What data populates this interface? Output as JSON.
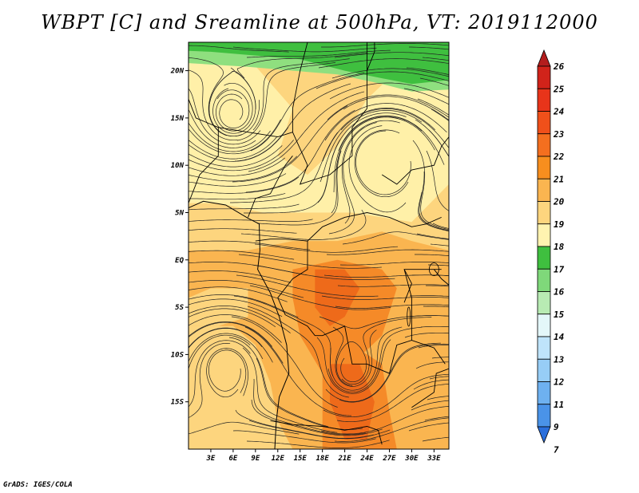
{
  "title": "WBPT [C] and Sreamline at 500hPa, VT: 2019112000",
  "credit": "GrADS: IGES/COLA",
  "map": {
    "lon_min": 0,
    "lon_max": 35,
    "lat_min": -20,
    "lat_max": 23,
    "lat_ticks": [
      {
        "value": 20,
        "label": "20N"
      },
      {
        "value": 15,
        "label": "15N"
      },
      {
        "value": 10,
        "label": "10N"
      },
      {
        "value": 5,
        "label": "5N"
      },
      {
        "value": 0,
        "label": "EQ"
      },
      {
        "value": -5,
        "label": "5S"
      },
      {
        "value": -10,
        "label": "10S"
      },
      {
        "value": -15,
        "label": "15S"
      }
    ],
    "lon_ticks": [
      {
        "value": 3,
        "label": "3E"
      },
      {
        "value": 6,
        "label": "6E"
      },
      {
        "value": 9,
        "label": "9E"
      },
      {
        "value": 12,
        "label": "12E"
      },
      {
        "value": 15,
        "label": "15E"
      },
      {
        "value": 18,
        "label": "18E"
      },
      {
        "value": 21,
        "label": "21E"
      },
      {
        "value": 24,
        "label": "24E"
      },
      {
        "value": 27,
        "label": "27E"
      },
      {
        "value": 30,
        "label": "30E"
      },
      {
        "value": 33,
        "label": "33E"
      }
    ],
    "field_regions": [
      {
        "name": "green-band-north",
        "level": 17,
        "color": "#3fbf3f"
      },
      {
        "name": "light-green-edge",
        "level": 16,
        "color": "#8fdf7f"
      },
      {
        "name": "pale-yellow-north",
        "level": 19,
        "color": "#fff0a8"
      },
      {
        "name": "tan-sahel",
        "level": 20,
        "color": "#fdd57e"
      },
      {
        "name": "orange-central",
        "level": 21,
        "color": "#fab550"
      },
      {
        "name": "dark-orange-south",
        "level": 22,
        "color": "#f58a28"
      },
      {
        "name": "red-orange-core",
        "level": 23,
        "color": "#ee6a1a"
      }
    ],
    "vortices": [
      {
        "name": "cyclonic-vortex-sahara",
        "lon": 6,
        "lat": 14
      },
      {
        "name": "anticyclonic-vortex-atlantic",
        "lon": 5,
        "lat": -10
      },
      {
        "name": "anticyclonic-vortex-east",
        "lon": 26,
        "lat": 12
      },
      {
        "name": "vortex-southern",
        "lon": 22,
        "lat": -13
      }
    ]
  },
  "colorbar": {
    "levels": [
      {
        "label": "26",
        "color": "#b31d1d"
      },
      {
        "label": "25",
        "color": "#d1231a"
      },
      {
        "label": "24",
        "color": "#e8341a"
      },
      {
        "label": "23",
        "color": "#f0501a"
      },
      {
        "label": "22",
        "color": "#f46f1f"
      },
      {
        "label": "21",
        "color": "#f78e1e"
      },
      {
        "label": "20",
        "color": "#fab550"
      },
      {
        "label": "19",
        "color": "#fdd57e"
      },
      {
        "label": "18",
        "color": "#fff3b0"
      },
      {
        "label": "17",
        "color": "#3fbf3f"
      },
      {
        "label": "16",
        "color": "#7fd87a"
      },
      {
        "label": "15",
        "color": "#b8ebb3"
      },
      {
        "label": "14",
        "color": "#e4f7f9"
      },
      {
        "label": "13",
        "color": "#bfe4fb"
      },
      {
        "label": "12",
        "color": "#97cdf6"
      },
      {
        "label": "11",
        "color": "#6eb1f0"
      },
      {
        "label": "9",
        "color": "#4a93e8"
      },
      {
        "label": "7",
        "color": "#2a6fdc"
      }
    ]
  }
}
